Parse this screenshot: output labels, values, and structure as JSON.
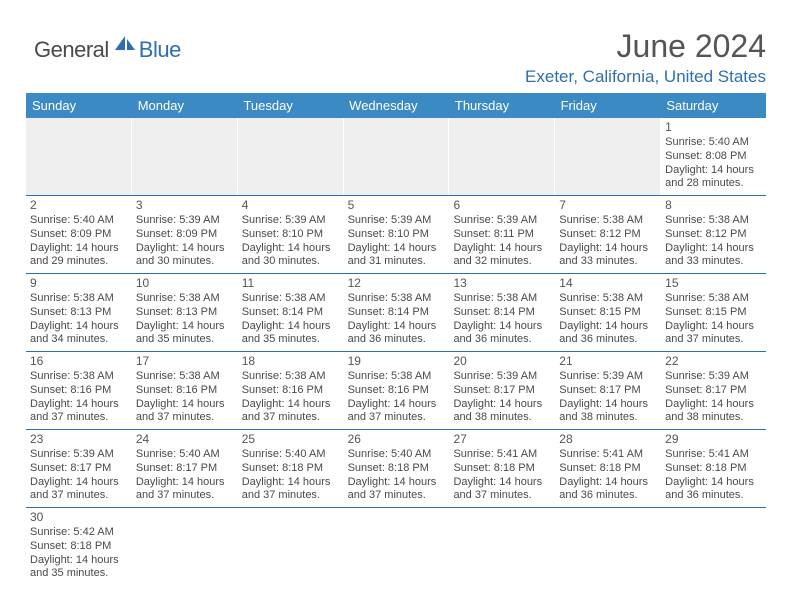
{
  "logo": {
    "general": "General",
    "blue": "Blue"
  },
  "title": "June 2024",
  "location": "Exeter, California, United States",
  "header_bg": "#3b8ac4",
  "accent": "#2f6fb0",
  "dow": [
    "Sunday",
    "Monday",
    "Tuesday",
    "Wednesday",
    "Thursday",
    "Friday",
    "Saturday"
  ],
  "weeks": [
    [
      null,
      null,
      null,
      null,
      null,
      null,
      {
        "d": "1",
        "sr": "5:40 AM",
        "ss": "8:08 PM",
        "dl": "14 hours and 28 minutes."
      }
    ],
    [
      {
        "d": "2",
        "sr": "5:40 AM",
        "ss": "8:09 PM",
        "dl": "14 hours and 29 minutes."
      },
      {
        "d": "3",
        "sr": "5:39 AM",
        "ss": "8:09 PM",
        "dl": "14 hours and 30 minutes."
      },
      {
        "d": "4",
        "sr": "5:39 AM",
        "ss": "8:10 PM",
        "dl": "14 hours and 30 minutes."
      },
      {
        "d": "5",
        "sr": "5:39 AM",
        "ss": "8:10 PM",
        "dl": "14 hours and 31 minutes."
      },
      {
        "d": "6",
        "sr": "5:39 AM",
        "ss": "8:11 PM",
        "dl": "14 hours and 32 minutes."
      },
      {
        "d": "7",
        "sr": "5:38 AM",
        "ss": "8:12 PM",
        "dl": "14 hours and 33 minutes."
      },
      {
        "d": "8",
        "sr": "5:38 AM",
        "ss": "8:12 PM",
        "dl": "14 hours and 33 minutes."
      }
    ],
    [
      {
        "d": "9",
        "sr": "5:38 AM",
        "ss": "8:13 PM",
        "dl": "14 hours and 34 minutes."
      },
      {
        "d": "10",
        "sr": "5:38 AM",
        "ss": "8:13 PM",
        "dl": "14 hours and 35 minutes."
      },
      {
        "d": "11",
        "sr": "5:38 AM",
        "ss": "8:14 PM",
        "dl": "14 hours and 35 minutes."
      },
      {
        "d": "12",
        "sr": "5:38 AM",
        "ss": "8:14 PM",
        "dl": "14 hours and 36 minutes."
      },
      {
        "d": "13",
        "sr": "5:38 AM",
        "ss": "8:14 PM",
        "dl": "14 hours and 36 minutes."
      },
      {
        "d": "14",
        "sr": "5:38 AM",
        "ss": "8:15 PM",
        "dl": "14 hours and 36 minutes."
      },
      {
        "d": "15",
        "sr": "5:38 AM",
        "ss": "8:15 PM",
        "dl": "14 hours and 37 minutes."
      }
    ],
    [
      {
        "d": "16",
        "sr": "5:38 AM",
        "ss": "8:16 PM",
        "dl": "14 hours and 37 minutes."
      },
      {
        "d": "17",
        "sr": "5:38 AM",
        "ss": "8:16 PM",
        "dl": "14 hours and 37 minutes."
      },
      {
        "d": "18",
        "sr": "5:38 AM",
        "ss": "8:16 PM",
        "dl": "14 hours and 37 minutes."
      },
      {
        "d": "19",
        "sr": "5:38 AM",
        "ss": "8:16 PM",
        "dl": "14 hours and 37 minutes."
      },
      {
        "d": "20",
        "sr": "5:39 AM",
        "ss": "8:17 PM",
        "dl": "14 hours and 38 minutes."
      },
      {
        "d": "21",
        "sr": "5:39 AM",
        "ss": "8:17 PM",
        "dl": "14 hours and 38 minutes."
      },
      {
        "d": "22",
        "sr": "5:39 AM",
        "ss": "8:17 PM",
        "dl": "14 hours and 38 minutes."
      }
    ],
    [
      {
        "d": "23",
        "sr": "5:39 AM",
        "ss": "8:17 PM",
        "dl": "14 hours and 37 minutes."
      },
      {
        "d": "24",
        "sr": "5:40 AM",
        "ss": "8:17 PM",
        "dl": "14 hours and 37 minutes."
      },
      {
        "d": "25",
        "sr": "5:40 AM",
        "ss": "8:18 PM",
        "dl": "14 hours and 37 minutes."
      },
      {
        "d": "26",
        "sr": "5:40 AM",
        "ss": "8:18 PM",
        "dl": "14 hours and 37 minutes."
      },
      {
        "d": "27",
        "sr": "5:41 AM",
        "ss": "8:18 PM",
        "dl": "14 hours and 37 minutes."
      },
      {
        "d": "28",
        "sr": "5:41 AM",
        "ss": "8:18 PM",
        "dl": "14 hours and 36 minutes."
      },
      {
        "d": "29",
        "sr": "5:41 AM",
        "ss": "8:18 PM",
        "dl": "14 hours and 36 minutes."
      }
    ],
    [
      {
        "d": "30",
        "sr": "5:42 AM",
        "ss": "8:18 PM",
        "dl": "14 hours and 35 minutes."
      },
      null,
      null,
      null,
      null,
      null,
      null
    ]
  ],
  "labels": {
    "sunrise": "Sunrise:",
    "sunset": "Sunset:",
    "daylight": "Daylight:"
  }
}
